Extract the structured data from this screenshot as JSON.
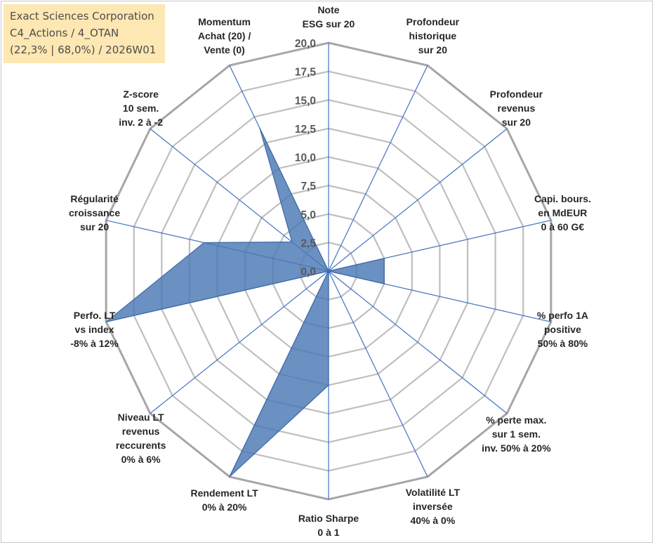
{
  "info": {
    "line1": "Exact Sciences Corporation",
    "line2": "C4_Actions / 4_OTAN",
    "line3": "(22,3% | 68,0%) / 2026W01"
  },
  "colors": {
    "fill": "#4a78b5",
    "stroke": "#3e6aa6",
    "spoke": "#4472c4",
    "ring": "#bfbfbf",
    "outer_ring": "#a6a6a6",
    "background": "#ffffff",
    "info_box": "#fde7b2"
  },
  "chart_data": {
    "type": "radar",
    "title": "",
    "r_min": 0,
    "r_max": 20,
    "r_step": 2.5,
    "tick_labels": [
      "0,0",
      "2,5",
      "5,0",
      "7,5",
      "10,0",
      "12,5",
      "15,0",
      "17,5",
      "20,0"
    ],
    "categories": [
      [
        "Note",
        "ESG sur 20"
      ],
      [
        "Profondeur",
        "historique",
        "sur 20"
      ],
      [
        "Profondeur",
        "revenus",
        "sur 20"
      ],
      [
        "Capi. bours.",
        "en MdEUR",
        "0 à 60 G€"
      ],
      [
        "% perfo 1A",
        "positive",
        "50% à 80%"
      ],
      [
        "% perte max.",
        "sur 1 sem.",
        "inv. 50% à 20%"
      ],
      [
        "Volatilité LT",
        "inversée",
        "40% à 0%"
      ],
      [
        "Ratio Sharpe",
        "0 à 1"
      ],
      [
        "Rendement LT",
        "0% à 20%"
      ],
      [
        "Niveau LT",
        "revenus",
        "reccurents",
        "0% à 6%"
      ],
      [
        "Perfo. LT",
        "vs index",
        "-8% à 12%"
      ],
      [
        "Régularité",
        "croissance",
        "sur 20"
      ],
      [
        "Z-score",
        "10 sem.",
        "inv. 2 à -2"
      ],
      [
        "Momentum",
        "Achat (20) /",
        "Vente (0)"
      ]
    ],
    "series": [
      {
        "values": [
          0,
          0,
          0,
          5.0,
          5.0,
          0,
          0,
          10.0,
          20.0,
          0,
          20.0,
          11.2,
          4.1,
          13.9
        ]
      }
    ],
    "grid": true
  }
}
